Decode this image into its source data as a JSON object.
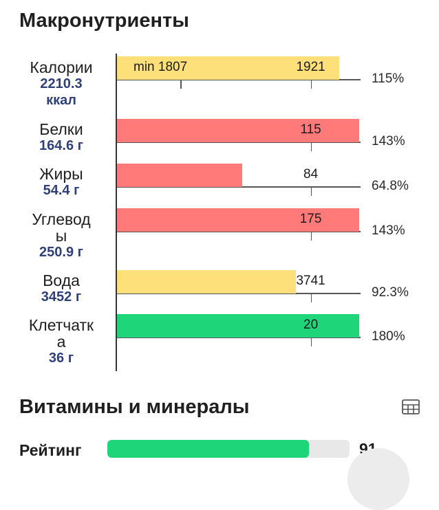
{
  "macros": {
    "title": "Макронутриенты",
    "rows": [
      {
        "name_lines": [
          "Калории"
        ],
        "amount_lines": [
          "2210.3",
          "ккал"
        ],
        "bar_fraction": 0.918,
        "color": "yellow",
        "inner_labels": [
          {
            "text": "min 1807",
            "target_fraction": 0.262
          },
          {
            "text": "1921",
            "target_fraction": 0.8
          }
        ],
        "percent": "115%"
      },
      {
        "name_lines": [
          "Белки"
        ],
        "amount_lines": [
          "164.6 г"
        ],
        "bar_fraction": 1.0,
        "color": "red",
        "inner_labels": [
          {
            "text": "115",
            "target_fraction": 0.8
          }
        ],
        "percent": "143%"
      },
      {
        "name_lines": [
          "Жиры"
        ],
        "amount_lines": [
          "54.4 г"
        ],
        "bar_fraction": 0.518,
        "color": "red",
        "inner_labels": [
          {
            "text": "84",
            "target_fraction": 0.8
          }
        ],
        "percent": "64.8%"
      },
      {
        "name_lines": [
          "Углевод",
          "ы"
        ],
        "amount_lines": [
          "250.9 г"
        ],
        "bar_fraction": 1.0,
        "color": "red",
        "inner_labels": [
          {
            "text": "175",
            "target_fraction": 0.8
          }
        ],
        "percent": "143%"
      },
      {
        "name_lines": [
          "Вода"
        ],
        "amount_lines": [
          "3452 г"
        ],
        "bar_fraction": 0.738,
        "color": "yellow",
        "inner_labels": [
          {
            "text": "3741",
            "target_fraction": 0.8
          }
        ],
        "percent": "92.3%"
      },
      {
        "name_lines": [
          "Клетчатк",
          "а"
        ],
        "amount_lines": [
          "36 г"
        ],
        "bar_fraction": 1.0,
        "color": "green",
        "inner_labels": [
          {
            "text": "20",
            "target_fraction": 0.8
          }
        ],
        "percent": "180%"
      }
    ]
  },
  "vitamins": {
    "title": "Витамины и минералы",
    "table_icon": "table-grid-icon"
  },
  "rating": {
    "label": "Рейтинг",
    "value": "91",
    "fraction": 0.91
  },
  "colors": {
    "yellow": "#fde07a",
    "red": "#ff7a78",
    "green": "#1fd57a",
    "amount_text": "#2f3f78"
  }
}
